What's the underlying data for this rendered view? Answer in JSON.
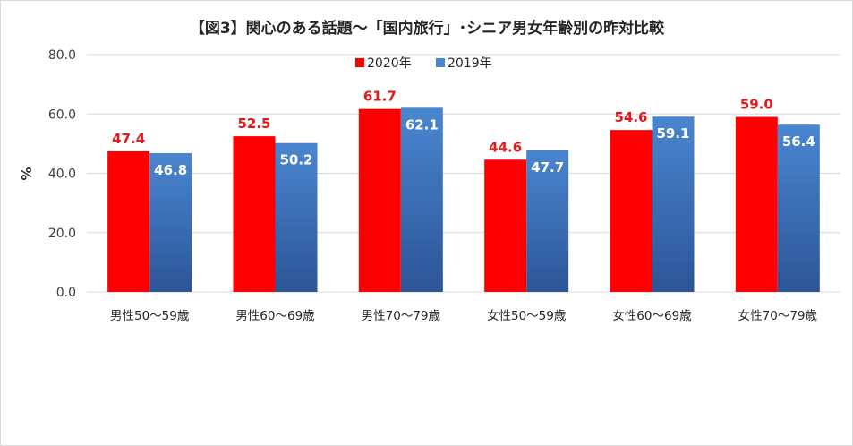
{
  "chart_data": {
    "type": "bar",
    "title": "【図3】関心のある話題～「国内旅行」･シニア男女年齢別の昨対比較",
    "ylabel": "%",
    "xlabel": "",
    "ylim": [
      0,
      80
    ],
    "yticks": [
      "0.0",
      "20.0",
      "40.0",
      "60.0",
      "80.0"
    ],
    "grid": true,
    "legend_position": "top-center",
    "categories": [
      "男性50～59歳",
      "男性60～69歳",
      "男性70～79歳",
      "女性50～59歳",
      "女性60～69歳",
      "女性70～79歳"
    ],
    "series": [
      {
        "name": "2020年",
        "values": [
          47.4,
          52.5,
          61.7,
          44.6,
          54.6,
          59.0
        ],
        "labels": [
          "47.4",
          "52.5",
          "61.7",
          "44.6",
          "54.6",
          "59.0"
        ],
        "color": "#ff0000",
        "label_color": "#e31a1c"
      },
      {
        "name": "2019年",
        "values": [
          46.8,
          50.2,
          62.1,
          47.7,
          59.1,
          56.4
        ],
        "labels": [
          "46.8",
          "50.2",
          "62.1",
          "47.7",
          "59.1",
          "56.4"
        ],
        "color_top": "#4a86d0",
        "color_bottom": "#2c5597",
        "label_color": "#ffffff"
      }
    ]
  }
}
